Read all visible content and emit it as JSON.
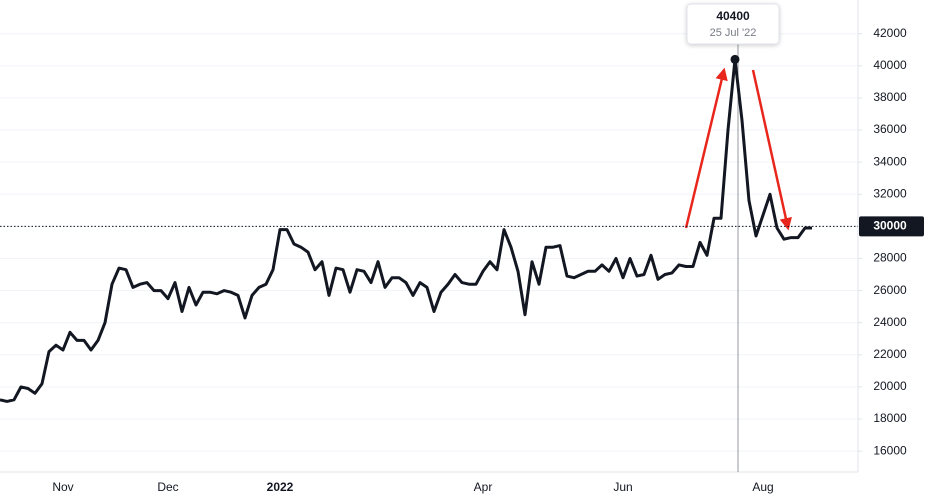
{
  "chart_data": {
    "type": "line",
    "categories": [
      null,
      null,
      null,
      null,
      null,
      null,
      null,
      null,
      null,
      "Nov",
      null,
      null,
      null,
      null,
      null,
      null,
      null,
      null,
      null,
      null,
      null,
      null,
      null,
      null,
      "Dec",
      null,
      null,
      null,
      null,
      null,
      null,
      null,
      null,
      null,
      null,
      null,
      null,
      null,
      null,
      null,
      "2022",
      null,
      null,
      null,
      null,
      null,
      null,
      null,
      null,
      null,
      null,
      null,
      null,
      null,
      null,
      null,
      null,
      null,
      null,
      null,
      null,
      null,
      null,
      null,
      null,
      null,
      null,
      null,
      null,
      "Apr",
      null,
      null,
      null,
      null,
      null,
      null,
      null,
      null,
      null,
      null,
      null,
      null,
      null,
      null,
      null,
      null,
      null,
      null,
      null,
      "Jun",
      null,
      null,
      null,
      null,
      null,
      null,
      null,
      null,
      null,
      null,
      null,
      null,
      null,
      null,
      null,
      null,
      null,
      null,
      null,
      "Aug",
      null,
      null,
      null,
      null,
      null,
      null,
      null
    ],
    "values": [
      19200,
      19100,
      19200,
      20000,
      19900,
      19600,
      20200,
      22200,
      22600,
      22300,
      23400,
      22900,
      22900,
      22300,
      22900,
      24000,
      26400,
      27400,
      27300,
      26200,
      26400,
      26500,
      26000,
      26000,
      25500,
      26500,
      24700,
      26200,
      25100,
      25900,
      25900,
      25800,
      26000,
      25900,
      25700,
      24300,
      25700,
      26200,
      26400,
      27300,
      29800,
      29800,
      28900,
      28700,
      28400,
      27300,
      27800,
      25700,
      27400,
      27300,
      25900,
      27300,
      27200,
      26500,
      27800,
      26200,
      26800,
      26800,
      26500,
      25700,
      26500,
      26200,
      24700,
      25900,
      26400,
      27000,
      26500,
      26400,
      26400,
      27200,
      27800,
      27300,
      29800,
      28700,
      27200,
      24500,
      27800,
      26400,
      28700,
      28700,
      28800,
      26900,
      26800,
      27000,
      27200,
      27200,
      27600,
      27200,
      28000,
      26800,
      28000,
      26900,
      27000,
      28200,
      26700,
      27000,
      27100,
      27600,
      27500,
      27500,
      29000,
      28200,
      30500,
      30500,
      36000,
      40400,
      36600,
      31600,
      29400,
      30700,
      32000,
      29900,
      29200,
      29300,
      29300,
      29900,
      29900
    ],
    "color": "#131722",
    "ylim": [
      14700,
      44100
    ],
    "yticks": [
      16000,
      18000,
      20000,
      22000,
      24000,
      26000,
      28000,
      30000,
      32000,
      34000,
      36000,
      38000,
      40000,
      42000
    ],
    "price_line": 30000,
    "tooltip": {
      "value": 40400,
      "date": "25 Jul '22"
    }
  }
}
